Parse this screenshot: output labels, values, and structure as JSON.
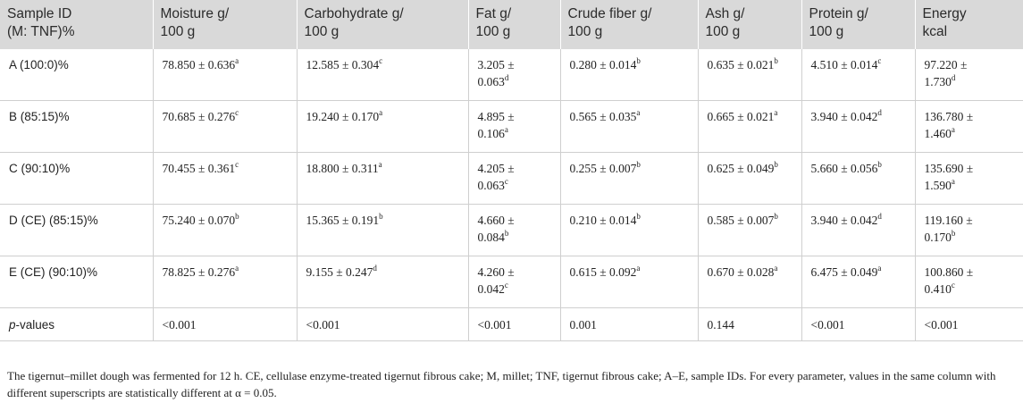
{
  "table": {
    "headers": [
      "Sample ID\n(M: TNF)%",
      "Moisture g/\n100 g",
      "Carbohydrate g/\n100 g",
      "Fat g/\n100 g",
      "Crude fiber g/\n100 g",
      "Ash g/\n100 g",
      "Protein g/\n100 g",
      "Energy\nkcal"
    ],
    "rows": [
      {
        "id": "A (100:0)%",
        "cells": [
          {
            "v": "78.850 ± 0.636",
            "s": "a"
          },
          {
            "v": "12.585 ± 0.304",
            "s": "c"
          },
          {
            "v": "3.205 ±\n0.063",
            "s": "d"
          },
          {
            "v": "0.280 ± 0.014",
            "s": "b"
          },
          {
            "v": "0.635 ± 0.021",
            "s": "b"
          },
          {
            "v": "4.510 ± 0.014",
            "s": "c"
          },
          {
            "v": "97.220 ±\n1.730",
            "s": "d"
          }
        ]
      },
      {
        "id": "B (85:15)%",
        "cells": [
          {
            "v": "70.685 ± 0.276",
            "s": "c"
          },
          {
            "v": "19.240 ± 0.170",
            "s": "a"
          },
          {
            "v": "4.895 ±\n0.106",
            "s": "a"
          },
          {
            "v": "0.565 ± 0.035",
            "s": "a"
          },
          {
            "v": "0.665 ± 0.021",
            "s": "a"
          },
          {
            "v": "3.940 ± 0.042",
            "s": "d"
          },
          {
            "v": "136.780 ±\n1.460",
            "s": "a"
          }
        ]
      },
      {
        "id": "C (90:10)%",
        "cells": [
          {
            "v": "70.455 ± 0.361",
            "s": "c"
          },
          {
            "v": "18.800 ± 0.311",
            "s": "a"
          },
          {
            "v": "4.205 ±\n0.063",
            "s": "c"
          },
          {
            "v": "0.255 ± 0.007",
            "s": "b"
          },
          {
            "v": "0.625 ± 0.049",
            "s": "b"
          },
          {
            "v": "5.660 ± 0.056",
            "s": "b"
          },
          {
            "v": "135.690 ±\n1.590",
            "s": "a"
          }
        ]
      },
      {
        "id": "D (CE) (85:15)%",
        "cells": [
          {
            "v": "75.240 ± 0.070",
            "s": "b"
          },
          {
            "v": "15.365 ± 0.191",
            "s": "b"
          },
          {
            "v": "4.660 ±\n0.084",
            "s": "b"
          },
          {
            "v": "0.210 ± 0.014",
            "s": "b"
          },
          {
            "v": "0.585 ± 0.007",
            "s": "b"
          },
          {
            "v": "3.940 ± 0.042",
            "s": "d"
          },
          {
            "v": "119.160 ±\n0.170",
            "s": "b"
          }
        ]
      },
      {
        "id": "E (CE) (90:10)%",
        "cells": [
          {
            "v": "78.825 ± 0.276",
            "s": "a"
          },
          {
            "v": "9.155 ± 0.247",
            "s": "d"
          },
          {
            "v": "4.260 ±\n0.042",
            "s": "c"
          },
          {
            "v": "0.615 ± 0.092",
            "s": "a"
          },
          {
            "v": "0.670 ± 0.028",
            "s": "a"
          },
          {
            "v": "6.475 ± 0.049",
            "s": "a"
          },
          {
            "v": "100.860 ±\n0.410",
            "s": "c"
          }
        ]
      }
    ],
    "pvalues": {
      "label_italic": "p",
      "label_rest": "-values",
      "values": [
        "<0.001",
        "<0.001",
        "<0.001",
        "0.001",
        "0.144",
        "<0.001",
        "<0.001"
      ]
    }
  },
  "footnote": "The tigernut–millet dough was fermented for 12 h. CE, cellulase enzyme-treated tigernut fibrous cake; M, millet; TNF, tigernut fibrous cake; A–E, sample IDs. For every parameter, values in the same column with different superscripts are statistically different at α = 0.05."
}
